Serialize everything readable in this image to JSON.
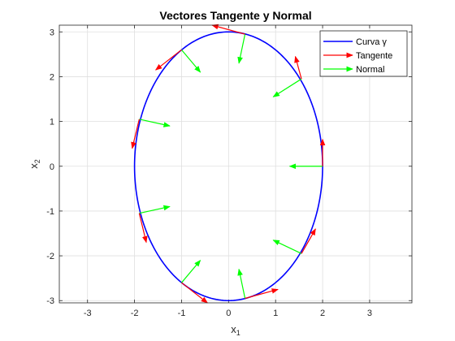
{
  "chart_data": {
    "type": "line",
    "title": "Vectores Tangente y Normal",
    "xlabel": {
      "base": "x",
      "sub": "1"
    },
    "ylabel": {
      "base": "x",
      "sub": "2"
    },
    "xlim": [
      -3.6,
      3.9
    ],
    "ylim": [
      -3.05,
      3.15
    ],
    "xticks": [
      -3,
      -2,
      -1,
      0,
      1,
      2,
      3
    ],
    "yticks": [
      -3,
      -2,
      -1,
      0,
      1,
      2,
      3
    ],
    "grid": true,
    "legend_position": "top-right",
    "curve": {
      "name": "Curva γ",
      "type": "ellipse",
      "a": 2,
      "b": 3,
      "color": "#0000ff"
    },
    "tangent_color": "#ff0000",
    "normal_color": "#00ff00",
    "legend": [
      {
        "label": "Curva γ",
        "color": "#0000ff",
        "style": "line"
      },
      {
        "label": "Tangente",
        "color": "#ff0000",
        "style": "arrow"
      },
      {
        "label": "Normal",
        "color": "#00ff00",
        "style": "arrow"
      }
    ],
    "points": [
      {
        "x": 2.0,
        "y": 0.0,
        "tangent": [
          0.0,
          0.6
        ],
        "normal": [
          -0.7,
          0.0
        ]
      },
      {
        "x": 1.55,
        "y": 1.95,
        "tangent": [
          -0.13,
          0.5
        ],
        "normal": [
          -0.6,
          -0.4
        ]
      },
      {
        "x": 0.35,
        "y": 2.95,
        "tangent": [
          -0.7,
          0.2
        ],
        "normal": [
          -0.13,
          -0.65
        ]
      },
      {
        "x": -1.0,
        "y": 2.6,
        "tangent": [
          -0.55,
          -0.45
        ],
        "normal": [
          0.4,
          -0.5
        ]
      },
      {
        "x": -1.9,
        "y": 1.05,
        "tangent": [
          -0.15,
          -0.65
        ],
        "normal": [
          0.65,
          -0.15
        ]
      },
      {
        "x": -1.9,
        "y": -1.05,
        "tangent": [
          0.15,
          -0.65
        ],
        "normal": [
          0.65,
          0.15
        ]
      },
      {
        "x": -1.0,
        "y": -2.6,
        "tangent": [
          0.55,
          -0.45
        ],
        "normal": [
          0.4,
          0.5
        ]
      },
      {
        "x": 0.35,
        "y": -2.95,
        "tangent": [
          0.7,
          0.2
        ],
        "normal": [
          -0.13,
          0.65
        ]
      },
      {
        "x": 1.55,
        "y": -1.95,
        "tangent": [
          0.3,
          0.55
        ],
        "normal": [
          -0.6,
          0.3
        ]
      }
    ]
  }
}
